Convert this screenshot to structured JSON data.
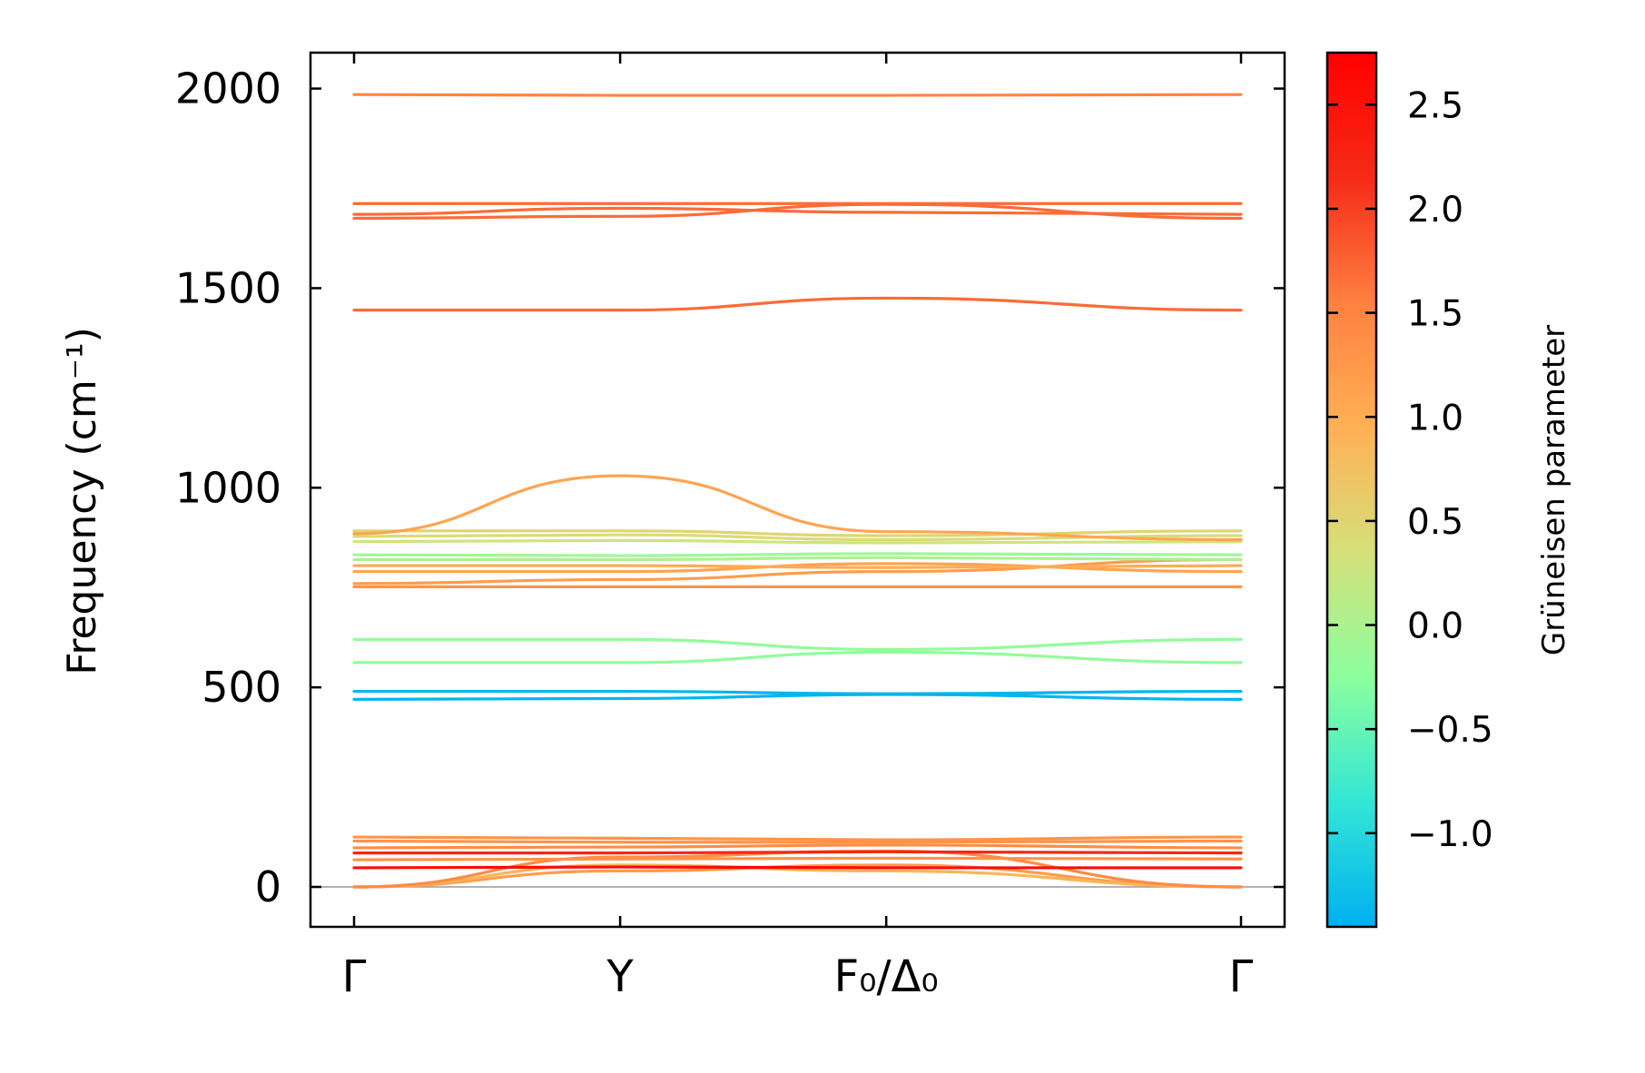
{
  "chart_data": {
    "type": "line",
    "title": "",
    "xlabel": "",
    "ylabel": "Frequency (cm⁻¹)",
    "xlim": [
      0,
      4
    ],
    "ylim": [
      -100,
      2090
    ],
    "yticks": [
      0,
      500,
      1000,
      1500,
      2000
    ],
    "ytick_labels": [
      "0",
      "500",
      "1000",
      "1500",
      "2000"
    ],
    "x_ticks": [
      {
        "pos": 0,
        "label": "Γ"
      },
      {
        "pos": 1.2,
        "label": "Y"
      },
      {
        "pos": 2.4,
        "label": "F₀/Δ₀"
      },
      {
        "pos": 4,
        "label": "Γ"
      }
    ],
    "colorbar": {
      "label": "Grüneisen parameter",
      "range": [
        -1.45,
        2.75
      ],
      "ticks": [
        -1.0,
        -0.5,
        0.0,
        0.5,
        1.0,
        1.5,
        2.0,
        2.5
      ],
      "tick_labels": [
        "−1.0",
        "−0.5",
        "0.0",
        "0.5",
        "1.0",
        "1.5",
        "2.0",
        "2.5"
      ],
      "colormap": [
        "#00b0f0",
        "#33e6d6",
        "#8cff9e",
        "#d6e07a",
        "#ffb055",
        "#ff8040",
        "#f52a18",
        "#ff0000"
      ]
    },
    "series": [
      {
        "name": "band-1",
        "gamma": 1.2,
        "points": [
          [
            0,
            0
          ],
          [
            1.2,
            40
          ],
          [
            2.4,
            55
          ],
          [
            4,
            0
          ]
        ]
      },
      {
        "name": "band-2",
        "gamma": 0.9,
        "points": [
          [
            0,
            0
          ],
          [
            1.2,
            55
          ],
          [
            2.4,
            40
          ],
          [
            4,
            0
          ]
        ]
      },
      {
        "name": "band-3",
        "gamma": 1.4,
        "points": [
          [
            0,
            0
          ],
          [
            1.2,
            75
          ],
          [
            2.4,
            90
          ],
          [
            4,
            0
          ]
        ]
      },
      {
        "name": "band-4",
        "gamma": 2.6,
        "points": [
          [
            0,
            48
          ],
          [
            1.2,
            50
          ],
          [
            2.4,
            48
          ],
          [
            4,
            48
          ]
        ]
      },
      {
        "name": "band-5",
        "gamma": 1.3,
        "points": [
          [
            0,
            68
          ],
          [
            1.2,
            70
          ],
          [
            2.4,
            72
          ],
          [
            4,
            70
          ]
        ]
      },
      {
        "name": "band-6",
        "gamma": 2.2,
        "points": [
          [
            0,
            85
          ],
          [
            1.2,
            85
          ],
          [
            2.4,
            88
          ],
          [
            4,
            85
          ]
        ]
      },
      {
        "name": "band-7",
        "gamma": 1.4,
        "points": [
          [
            0,
            98
          ],
          [
            1.2,
            100
          ],
          [
            2.4,
            105
          ],
          [
            4,
            98
          ]
        ]
      },
      {
        "name": "band-8",
        "gamma": 1.3,
        "points": [
          [
            0,
            115
          ],
          [
            1.2,
            112
          ],
          [
            2.4,
            112
          ],
          [
            4,
            115
          ]
        ]
      },
      {
        "name": "band-9",
        "gamma": 1.3,
        "points": [
          [
            0,
            125
          ],
          [
            1.2,
            122
          ],
          [
            2.4,
            118
          ],
          [
            4,
            125
          ]
        ]
      },
      {
        "name": "band-10",
        "gamma": -1.4,
        "points": [
          [
            0,
            470
          ],
          [
            1.2,
            472
          ],
          [
            2.4,
            482
          ],
          [
            4,
            470
          ]
        ]
      },
      {
        "name": "band-11",
        "gamma": -1.4,
        "points": [
          [
            0,
            490
          ],
          [
            1.2,
            490
          ],
          [
            2.4,
            484
          ],
          [
            4,
            490
          ]
        ]
      },
      {
        "name": "band-12",
        "gamma": -0.2,
        "points": [
          [
            0,
            562
          ],
          [
            1.2,
            562
          ],
          [
            2.4,
            588
          ],
          [
            4,
            562
          ]
        ]
      },
      {
        "name": "band-13",
        "gamma": -0.2,
        "points": [
          [
            0,
            620
          ],
          [
            1.2,
            620
          ],
          [
            2.4,
            595
          ],
          [
            4,
            620
          ]
        ]
      },
      {
        "name": "band-14",
        "gamma": 1.3,
        "points": [
          [
            0,
            752
          ],
          [
            1.2,
            752
          ],
          [
            2.4,
            752
          ],
          [
            4,
            752
          ]
        ]
      },
      {
        "name": "band-15",
        "gamma": 1.2,
        "points": [
          [
            0,
            760
          ],
          [
            1.2,
            770
          ],
          [
            2.4,
            790
          ],
          [
            4,
            820
          ]
        ]
      },
      {
        "name": "band-16",
        "gamma": 1.1,
        "points": [
          [
            0,
            790
          ],
          [
            1.2,
            790
          ],
          [
            2.4,
            810
          ],
          [
            4,
            790
          ]
        ]
      },
      {
        "name": "band-17",
        "gamma": 1.0,
        "points": [
          [
            0,
            805
          ],
          [
            1.2,
            805
          ],
          [
            2.4,
            800
          ],
          [
            4,
            805
          ]
        ]
      },
      {
        "name": "band-18",
        "gamma": 0.0,
        "points": [
          [
            0,
            820
          ],
          [
            1.2,
            820
          ],
          [
            2.4,
            825
          ],
          [
            4,
            820
          ]
        ]
      },
      {
        "name": "band-19",
        "gamma": -0.1,
        "points": [
          [
            0,
            832
          ],
          [
            1.2,
            830
          ],
          [
            2.4,
            835
          ],
          [
            4,
            832
          ]
        ]
      },
      {
        "name": "band-20",
        "gamma": 0.3,
        "points": [
          [
            0,
            865
          ],
          [
            1.2,
            868
          ],
          [
            2.4,
            862
          ],
          [
            4,
            865
          ]
        ]
      },
      {
        "name": "band-21",
        "gamma": 0.4,
        "points": [
          [
            0,
            878
          ],
          [
            1.2,
            882
          ],
          [
            2.4,
            870
          ],
          [
            4,
            880
          ]
        ]
      },
      {
        "name": "band-22",
        "gamma": 0.5,
        "points": [
          [
            0,
            892
          ],
          [
            1.2,
            892
          ],
          [
            2.4,
            880
          ],
          [
            4,
            892
          ]
        ]
      },
      {
        "name": "band-23",
        "gamma": 1.1,
        "points": [
          [
            0,
            885
          ],
          [
            1.2,
            1030
          ],
          [
            2.4,
            890
          ],
          [
            4,
            870
          ]
        ]
      },
      {
        "name": "band-24",
        "gamma": 1.7,
        "points": [
          [
            0,
            1445
          ],
          [
            1.2,
            1445
          ],
          [
            2.4,
            1475
          ],
          [
            4,
            1445
          ]
        ]
      },
      {
        "name": "band-25",
        "gamma": 1.7,
        "points": [
          [
            0,
            1675
          ],
          [
            1.2,
            1680
          ],
          [
            2.4,
            1710
          ],
          [
            4,
            1675
          ]
        ]
      },
      {
        "name": "band-26",
        "gamma": 1.7,
        "points": [
          [
            0,
            1685
          ],
          [
            1.2,
            1700
          ],
          [
            2.4,
            1690
          ],
          [
            4,
            1685
          ]
        ]
      },
      {
        "name": "band-27",
        "gamma": 1.7,
        "points": [
          [
            0,
            1712
          ],
          [
            1.2,
            1712
          ],
          [
            2.4,
            1712
          ],
          [
            4,
            1712
          ]
        ]
      },
      {
        "name": "band-28",
        "gamma": 1.5,
        "points": [
          [
            0,
            1985
          ],
          [
            1.2,
            1983
          ],
          [
            2.4,
            1983
          ],
          [
            4,
            1985
          ]
        ]
      }
    ]
  }
}
